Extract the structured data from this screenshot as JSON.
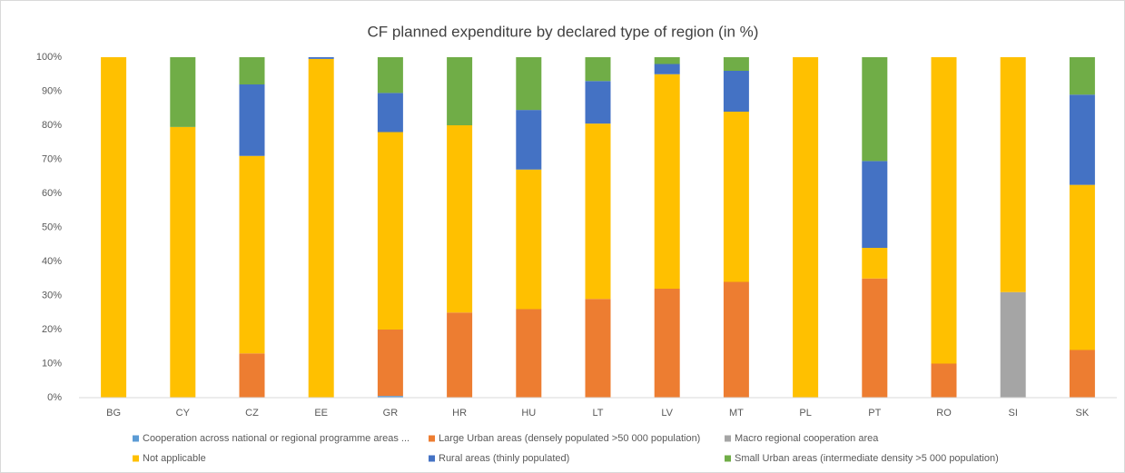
{
  "chart_data": {
    "type": "stacked_bar",
    "title": "CF planned expenditure by declared type of region (in %)",
    "categories": [
      "BG",
      "CY",
      "CZ",
      "EE",
      "GR",
      "HR",
      "HU",
      "LT",
      "LV",
      "MT",
      "PL",
      "PT",
      "RO",
      "SI",
      "SK"
    ],
    "series": [
      {
        "name": "Cooperation across national or regional programme areas ...",
        "color": "#5b9bd5",
        "values": [
          0,
          0,
          0,
          0,
          0.5,
          0,
          0,
          0,
          0,
          0,
          0,
          0,
          0,
          0,
          0
        ]
      },
      {
        "name": "Large Urban areas (densely populated >50 000 population)",
        "color": "#ed7d31",
        "values": [
          0,
          0,
          13,
          0,
          19.5,
          25,
          26,
          29,
          32,
          34,
          0,
          35,
          10,
          0,
          14
        ]
      },
      {
        "name": "Macro regional cooperation area",
        "color": "#a5a5a5",
        "values": [
          0,
          0,
          0,
          0,
          0,
          0,
          0,
          0,
          0,
          0,
          0,
          0,
          0,
          31,
          0
        ]
      },
      {
        "name": "Not applicable",
        "color": "#ffc000",
        "values": [
          100,
          79.5,
          58,
          99.5,
          58,
          55,
          41,
          51.5,
          63,
          50,
          100,
          9,
          90,
          69,
          48.5
        ]
      },
      {
        "name": "Rural areas (thinly populated)",
        "color": "#4472c4",
        "values": [
          0,
          0,
          21,
          0.5,
          11.5,
          0,
          17.5,
          12.5,
          3,
          12,
          0,
          25.5,
          0,
          0,
          26.5
        ]
      },
      {
        "name": "Small Urban areas (intermediate density >5 000 population)",
        "color": "#70ad47",
        "values": [
          0,
          20.5,
          8,
          0,
          10.5,
          20,
          15.5,
          7,
          2,
          4,
          0,
          30.5,
          0,
          0,
          11
        ]
      }
    ],
    "ylim": [
      0,
      100
    ],
    "yticks": [
      {
        "value": 0,
        "label": "0%"
      },
      {
        "value": 10,
        "label": "10%"
      },
      {
        "value": 20,
        "label": "20%"
      },
      {
        "value": 30,
        "label": "30%"
      },
      {
        "value": 40,
        "label": "40%"
      },
      {
        "value": 50,
        "label": "50%"
      },
      {
        "value": 60,
        "label": "60%"
      },
      {
        "value": 70,
        "label": "70%"
      },
      {
        "value": 80,
        "label": "80%"
      },
      {
        "value": 90,
        "label": "90%"
      },
      {
        "value": 100,
        "label": "100%"
      }
    ],
    "grid": false,
    "legend": "bottom"
  }
}
